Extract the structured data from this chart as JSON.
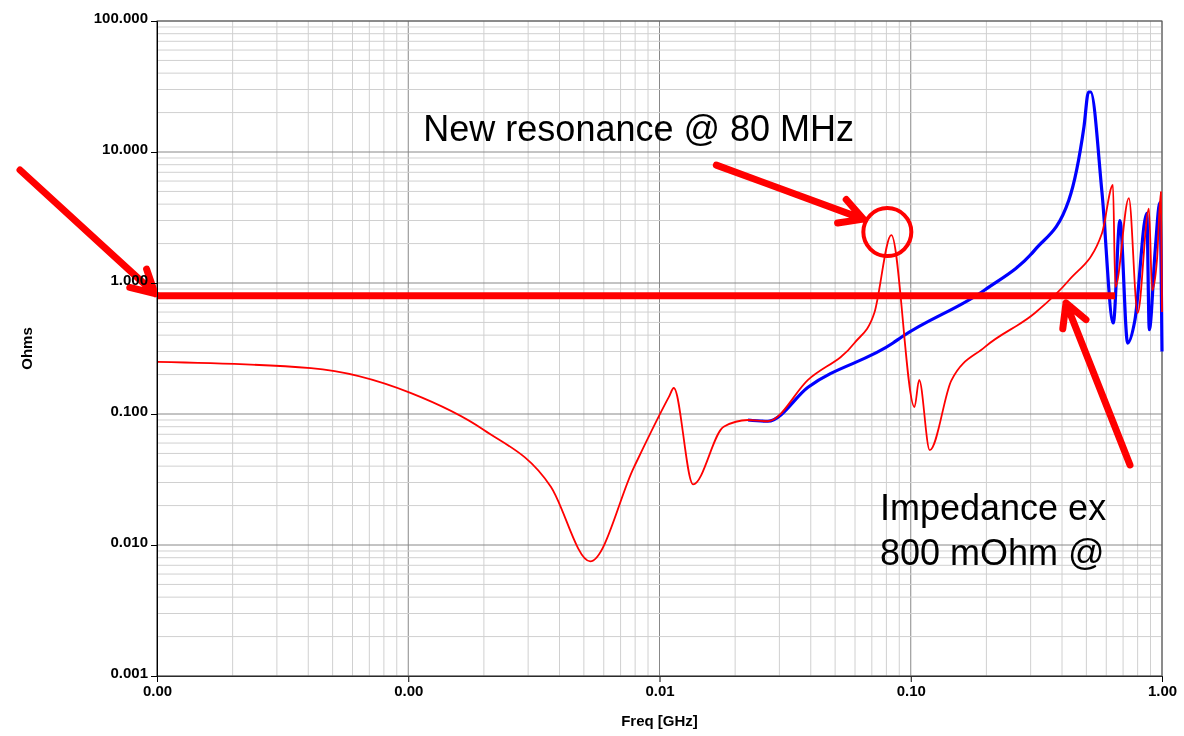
{
  "chart_data": {
    "type": "line",
    "xlabel": "Freq [GHz]",
    "ylabel": "Ohms",
    "log": "xy",
    "grid": true,
    "line_style": "solid",
    "xlim": [
      0.0001,
      1
    ],
    "xticks": [
      {
        "value": 0.0001,
        "label": "0.00"
      },
      {
        "value": 0.001,
        "label": "0.00"
      },
      {
        "value": 0.01,
        "label": "0.01"
      },
      {
        "value": 0.1,
        "label": "0.10"
      },
      {
        "value": 1,
        "label": "1.00"
      }
    ],
    "ylim": [
      0.001,
      100
    ],
    "yticks": [
      {
        "value": 0.001,
        "label": "0.001"
      },
      {
        "value": 0.01,
        "label": "0.010"
      },
      {
        "value": 0.1,
        "label": "0.100"
      },
      {
        "value": 1,
        "label": "1.000"
      },
      {
        "value": 10,
        "label": "10.000"
      },
      {
        "value": 100,
        "label": "100.000"
      }
    ],
    "series": [
      {
        "color": "#0000ff",
        "x": [
          0.0225,
          0.027,
          0.039,
          0.085,
          0.092,
          0.197,
          0.312,
          0.426,
          0.489,
          0.51,
          0.52,
          0.577,
          0.64,
          0.68,
          0.73,
          0.78,
          0.87,
          0.89,
          0.94,
          0.98,
          1
        ],
        "values": [
          0.09,
          0.088,
          0.16,
          0.348,
          0.387,
          0.885,
          1.79,
          4.3,
          15.5,
          28.7,
          28.7,
          4.9,
          0.495,
          3.0,
          0.348,
          0.52,
          3.4,
          0.44,
          1.8,
          4.1,
          0.3
        ]
      },
      {
        "color": "#ff0000",
        "x": [
          0.0001,
          0.00041,
          0.00102,
          0.002,
          0.0037,
          0.0053,
          0.0079,
          0.0109,
          0.0114,
          0.0136,
          0.018,
          0.0225,
          0.027,
          0.039,
          0.0597,
          0.0716,
          0.0837,
          0.1035,
          0.108,
          0.119,
          0.145,
          0.197,
          0.312,
          0.426,
          0.577,
          0.638,
          0.652,
          0.738,
          0.8,
          0.887,
          0.914,
          0.955,
          0.99,
          1
        ],
        "values": [
          0.25,
          0.224,
          0.145,
          0.0755,
          0.0277,
          0.0075,
          0.039,
          0.135,
          0.158,
          0.029,
          0.08,
          0.09,
          0.088,
          0.182,
          0.348,
          0.59,
          2.32,
          0.113,
          0.182,
          0.053,
          0.18,
          0.324,
          0.59,
          1.05,
          2.4,
          5.6,
          0.93,
          4.45,
          0.59,
          3.7,
          0.88,
          1.5,
          4.95,
          0.6
        ]
      },
      {
        "color": "#ff0000",
        "x": [
          0.0001,
          0.65
        ],
        "values": [
          0.8,
          0.8
        ]
      }
    ],
    "annotations": [
      {
        "text": "New resonance @ 80 MHz",
        "x": 0.0837,
        "y": 2.32
      },
      "Impedance ex\n800 mOhm @"
    ]
  }
}
